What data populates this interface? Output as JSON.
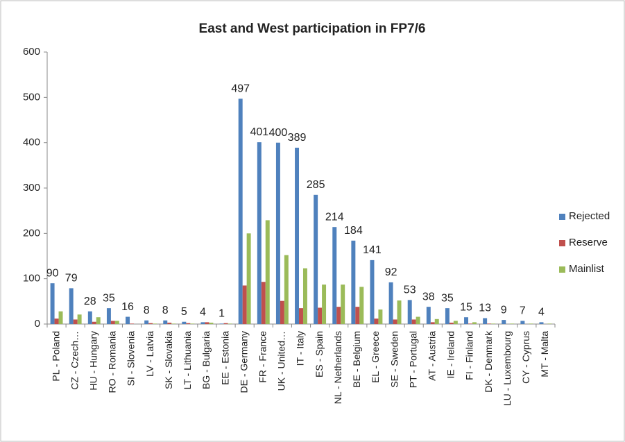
{
  "chart_data": {
    "type": "bar",
    "title": "East and West participation in FP7/6",
    "categories": [
      "PL - Poland",
      "CZ - Czech…",
      "HU - Hungary",
      "RO - Romania",
      "SI - Slovenia",
      "LV - Latvia",
      "SK - Slovakia",
      "LT - Lithuania",
      "BG - Bulgaria",
      "EE - Estonia",
      "DE - Germany",
      "FR - France",
      "UK - United…",
      "IT - Italy",
      "ES - Spain",
      "NL - Netherlands",
      "BE - Belgium",
      "EL - Greece",
      "SE - Sweden",
      "PT - Portugal",
      "AT - Austria",
      "IE - Ireland",
      "FI - Finland",
      "DK - Denmark",
      "LU - Luxembourg",
      "CY - Cyprus",
      "MT - Malta"
    ],
    "series": [
      {
        "name": "Rejected",
        "color": "#4f81bd",
        "values": [
          90,
          79,
          28,
          35,
          16,
          8,
          8,
          5,
          4,
          1,
          497,
          401,
          400,
          389,
          285,
          214,
          184,
          141,
          92,
          53,
          38,
          35,
          15,
          13,
          9,
          7,
          4
        ]
      },
      {
        "name": "Reserve",
        "color": "#c0504d",
        "values": [
          12,
          10,
          5,
          7,
          1,
          2,
          3,
          2,
          4,
          2,
          85,
          93,
          51,
          35,
          36,
          38,
          38,
          12,
          10,
          10,
          4,
          3,
          1,
          1,
          0,
          0,
          0
        ]
      },
      {
        "name": "Mainlist",
        "color": "#9bbb59",
        "values": [
          28,
          21,
          15,
          7,
          0,
          1,
          1,
          1,
          3,
          1,
          200,
          229,
          152,
          123,
          87,
          87,
          82,
          32,
          52,
          16,
          11,
          7,
          4,
          1,
          1,
          1,
          1
        ]
      }
    ],
    "data_labels_series": 0,
    "ylim": [
      0,
      600
    ],
    "yticks": [
      0,
      100,
      200,
      300,
      400,
      500,
      600
    ],
    "grid": false,
    "legend": "right"
  }
}
